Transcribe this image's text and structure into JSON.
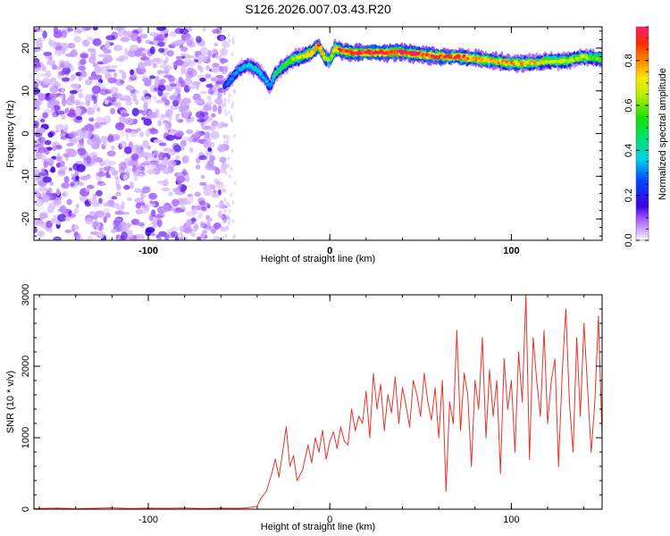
{
  "figure": {
    "title": "S126.2026.007.03.43.R20"
  },
  "chart_data": [
    {
      "type": "heatmap",
      "name": "spectrogram",
      "xlabel": "Height of straight line (km)",
      "ylabel": "Frequency (Hz)",
      "xlim": [
        -163,
        150
      ],
      "ylim": [
        -25,
        25
      ],
      "xticks": [
        {
          "value": -100,
          "label": "-100"
        },
        {
          "value": 0,
          "label": "0"
        },
        {
          "value": 100,
          "label": "100"
        }
      ],
      "yticks": [
        {
          "value": -20,
          "label": "-20"
        },
        {
          "value": -10,
          "label": "-10"
        },
        {
          "value": 0,
          "label": "0"
        },
        {
          "value": 10,
          "label": "10"
        },
        {
          "value": 20,
          "label": "20"
        }
      ],
      "noise_region_x": [
        -163,
        -57
      ],
      "signal_band": {
        "description": "Frequency track of the strongest spectral component",
        "x": [
          -58,
          -54,
          -50,
          -45,
          -40,
          -36,
          -33,
          -30,
          -25,
          -20,
          -15,
          -10,
          -6,
          -3,
          0,
          3,
          6,
          10,
          20,
          30,
          40,
          50,
          60,
          70,
          80,
          90,
          100,
          110,
          120,
          130,
          140,
          150
        ],
        "freq": [
          11,
          13,
          15,
          16,
          15,
          13,
          11,
          14,
          16,
          17.5,
          18,
          19,
          20.5,
          18,
          17,
          20,
          19.5,
          19,
          19,
          19,
          19,
          18.5,
          18,
          18,
          17.5,
          17,
          16.5,
          16.5,
          17,
          17,
          18,
          17.5
        ],
        "amplitude": [
          0.25,
          0.3,
          0.35,
          0.4,
          0.4,
          0.35,
          0.3,
          0.45,
          0.55,
          0.6,
          0.7,
          0.8,
          0.9,
          0.7,
          0.6,
          0.8,
          0.85,
          0.95,
          0.95,
          0.95,
          0.95,
          0.9,
          0.9,
          0.85,
          0.85,
          0.8,
          0.8,
          0.75,
          0.7,
          0.7,
          0.65,
          0.6
        ]
      },
      "colorbar": {
        "label": "Normalized spectral amplitude",
        "range": [
          0,
          0.95
        ],
        "ticks": [
          {
            "value": 0,
            "label": "0.0"
          },
          {
            "value": 0.2,
            "label": "0.2"
          },
          {
            "value": 0.4,
            "label": "0.4"
          },
          {
            "value": 0.6,
            "label": "0.6"
          },
          {
            "value": 0.8,
            "label": "0.8"
          }
        ]
      }
    },
    {
      "type": "line",
      "name": "snr",
      "xlabel": "Height of straight line (km)",
      "ylabel": "SNR (10 * v/v)",
      "xlim": [
        -163,
        150
      ],
      "ylim": [
        0,
        3000
      ],
      "xticks": [
        {
          "value": -100,
          "label": "-100"
        },
        {
          "value": 0,
          "label": "0"
        },
        {
          "value": 100,
          "label": "100"
        }
      ],
      "yticks": [
        {
          "value": 0,
          "label": "0"
        },
        {
          "value": 1000,
          "label": "1000"
        },
        {
          "value": 2000,
          "label": "2000"
        },
        {
          "value": 3000,
          "label": "3000"
        }
      ],
      "color": "#e8332a",
      "series": [
        {
          "name": "SNR",
          "x": [
            -163,
            -150,
            -140,
            -130,
            -120,
            -110,
            -100,
            -90,
            -80,
            -70,
            -60,
            -50,
            -45,
            -40,
            -38,
            -35,
            -32,
            -30,
            -28,
            -26,
            -24,
            -22,
            -20,
            -18,
            -15,
            -12,
            -10,
            -8,
            -6,
            -4,
            -2,
            0,
            2,
            4,
            6,
            8,
            10,
            12,
            14,
            16,
            18,
            20,
            22,
            24,
            26,
            28,
            30,
            32,
            34,
            36,
            38,
            40,
            42,
            44,
            46,
            48,
            50,
            52,
            54,
            56,
            58,
            60,
            62,
            64,
            66,
            68,
            70,
            72,
            74,
            76,
            78,
            80,
            82,
            84,
            86,
            88,
            90,
            92,
            94,
            96,
            98,
            100,
            102,
            104,
            106,
            108,
            110,
            112,
            114,
            116,
            118,
            120,
            122,
            124,
            126,
            128,
            130,
            132,
            134,
            136,
            138,
            140,
            142,
            144,
            146,
            148,
            150
          ],
          "y": [
            10,
            15,
            8,
            12,
            20,
            10,
            15,
            12,
            18,
            10,
            15,
            12,
            20,
            40,
            150,
            250,
            500,
            700,
            450,
            800,
            1150,
            600,
            750,
            400,
            550,
            900,
            650,
            1000,
            800,
            1100,
            700,
            950,
            1080,
            850,
            1150,
            950,
            900,
            1400,
            1100,
            1300,
            1200,
            1650,
            1000,
            1900,
            1400,
            1750,
            1100,
            1600,
            1350,
            1850,
            1200,
            1700,
            1450,
            1150,
            1800,
            1600,
            1300,
            1900,
            1500,
            1250,
            1700,
            1000,
            1800,
            250,
            1500,
            1200,
            2500,
            1100,
            1900,
            1600,
            600,
            1800,
            1400,
            2400,
            1000,
            1950,
            1300,
            1800,
            500,
            2100,
            1400,
            1800,
            800,
            2200,
            1500,
            3000,
            700,
            2400,
            1800,
            1300,
            2500,
            1200,
            1800,
            2100,
            600,
            1900,
            2800,
            1500,
            800,
            2400,
            1300,
            2600,
            1700,
            800,
            1500,
            2700,
            1000
          ]
        }
      ]
    }
  ]
}
